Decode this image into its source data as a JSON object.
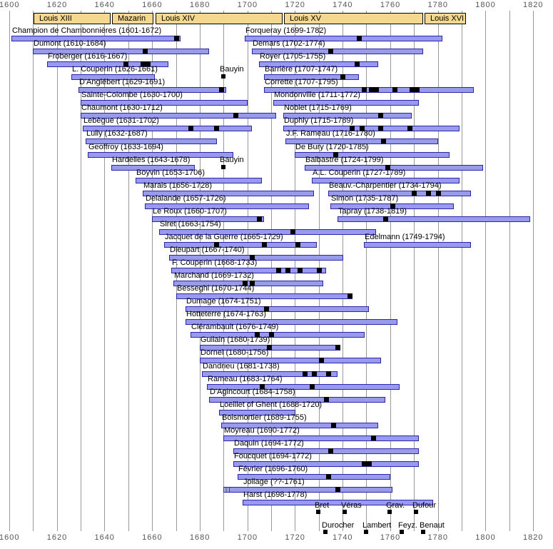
{
  "chart_data": {
    "type": "bar",
    "subtype": "timeline-of-lifespans",
    "title": "French harpsichord composers timeline 1600-1820",
    "xlabel": "",
    "ylabel": "",
    "axis": {
      "min": 1600,
      "max": 1820,
      "minor_step": 10,
      "label_step": 20,
      "tick_labels": [
        "1600",
        "1620",
        "1640",
        "1660",
        "1680",
        "1700",
        "1720",
        "1740",
        "1760",
        "1780",
        "1800",
        "1820"
      ]
    },
    "reigns": [
      {
        "label": "Louis XIII",
        "start": 1610,
        "end": 1643
      },
      {
        "label": "Mazarin",
        "start": 1643,
        "end": 1661
      },
      {
        "label": "Louis XIV",
        "start": 1661,
        "end": 1715
      },
      {
        "label": "Louis XV",
        "start": 1715,
        "end": 1774
      },
      {
        "label": "Louis XVI",
        "start": 1774,
        "end": 1792
      }
    ],
    "composers": [
      {
        "row": 0,
        "label": "Champion de Chambonnières (1601-1672)",
        "start": 1601,
        "end": 1672,
        "markers": [
          1670
        ]
      },
      {
        "row": 1,
        "label": "Dumont (1610-1684)",
        "start": 1610,
        "end": 1684,
        "markers": [
          1657
        ]
      },
      {
        "row": 2,
        "label": "Froberger (1616-1667)",
        "start": 1616,
        "end": 1667,
        "markers": [
          1649,
          1656,
          1658
        ]
      },
      {
        "row": 3,
        "label": "L. Couperin (1626-1661)",
        "start": 1626,
        "end": 1661,
        "markers": []
      },
      {
        "row": 4,
        "label": "D'Anglébert (1629-1691)",
        "start": 1629,
        "end": 1691,
        "markers": [
          1689
        ]
      },
      {
        "row": 5,
        "label": "Sainte-Colombe (1630-1700)",
        "start": 1630,
        "end": 1700,
        "markers": []
      },
      {
        "row": 6,
        "label": "Chaumont (1630-1712)",
        "start": 1630,
        "end": 1712,
        "markers": [
          1695
        ]
      },
      {
        "row": 7,
        "label": "Lebègue (1631-1702)",
        "start": 1631,
        "end": 1702,
        "markers": [
          1676,
          1687
        ]
      },
      {
        "row": 8,
        "label": "Lully (1632-1687)",
        "start": 1632,
        "end": 1687,
        "markers": []
      },
      {
        "row": 9,
        "label": "Geoffroy (1633-1694)",
        "start": 1633,
        "end": 1694,
        "markers": []
      },
      {
        "row": 10,
        "label": "Hardelles (1643-1678)",
        "start": 1643,
        "end": 1678,
        "markers": []
      },
      {
        "row": 11,
        "label": "Boyvin (1653-1706)",
        "start": 1653,
        "end": 1706,
        "markers": []
      },
      {
        "row": 12,
        "label": "Marais (1656-1728)",
        "start": 1656,
        "end": 1728,
        "markers": []
      },
      {
        "row": 13,
        "label": "Delalande (1657-1726)",
        "start": 1657,
        "end": 1726,
        "markers": []
      },
      {
        "row": 14,
        "label": "Le Roux (1660-1707)",
        "start": 1660,
        "end": 1707,
        "markers": [
          1705
        ]
      },
      {
        "row": 15,
        "label": "Siret (1663-1754)",
        "start": 1663,
        "end": 1754,
        "markers": [
          1719
        ]
      },
      {
        "row": 16,
        "label": "Jacquet de la Guerre (1665-1729)",
        "start": 1665,
        "end": 1729,
        "markers": [
          1687,
          1707,
          1721
        ]
      },
      {
        "row": 17,
        "label": "Dieupart (1667-1740)",
        "start": 1667,
        "end": 1740,
        "markers": [
          1702
        ]
      },
      {
        "row": 18,
        "label": "F. Couperin (1668-1733)",
        "start": 1668,
        "end": 1733,
        "markers": [
          1713,
          1717,
          1722,
          1730
        ]
      },
      {
        "row": 19,
        "label": "Marchand (1669-1732)",
        "start": 1669,
        "end": 1732,
        "markers": [
          1699,
          1702
        ]
      },
      {
        "row": 20,
        "label": "Besseghi (1670-1744)",
        "start": 1670,
        "end": 1744,
        "markers": [
          1743
        ]
      },
      {
        "row": 21,
        "label": "Dumage (1674-1751)",
        "start": 1674,
        "end": 1751,
        "markers": [
          1708
        ]
      },
      {
        "row": 22,
        "label": "Hotteterre (1674-1763)",
        "start": 1674,
        "end": 1763,
        "markers": []
      },
      {
        "row": 23,
        "label": "Clérambault (1676-1749)",
        "start": 1676,
        "end": 1749,
        "markers": [
          1704,
          1710
        ]
      },
      {
        "row": 24,
        "label": "Guilain (1680-1739)",
        "start": 1680,
        "end": 1739,
        "markers": [
          1709,
          1738
        ]
      },
      {
        "row": 25,
        "label": "Dornel (1680-1756)",
        "start": 1680,
        "end": 1756,
        "markers": [
          1731
        ]
      },
      {
        "row": 26,
        "label": "Dandrieu (1681-1738)",
        "start": 1681,
        "end": 1738,
        "markers": [
          1724,
          1728,
          1734
        ]
      },
      {
        "row": 27,
        "label": "Rameau (1683-1764)",
        "start": 1683,
        "end": 1764,
        "markers": [
          1706,
          1727
        ]
      },
      {
        "row": 28,
        "label": "D'Agincourt (1684-1758)",
        "start": 1684,
        "end": 1758,
        "markers": [
          1733
        ]
      },
      {
        "row": 29,
        "label": "Loeillet of Ghent (1688-1720)",
        "start": 1688,
        "end": 1720,
        "markers": []
      },
      {
        "row": 30,
        "label": "Boismortier (1689-1755)",
        "start": 1689,
        "end": 1755,
        "markers": [
          1736
        ]
      },
      {
        "row": 31,
        "label": "Moyreau (1690-1772)",
        "start": 1690,
        "end": 1772,
        "markers": [
          1753
        ]
      },
      {
        "row": 32,
        "label": "Daquin (1694-1772)",
        "start": 1694,
        "end": 1772,
        "markers": [
          1735
        ]
      },
      {
        "row": 33,
        "label": "Foucquet (1694-1772)",
        "start": 1694,
        "end": 1772,
        "markers": [
          1749,
          1751
        ]
      },
      {
        "row": 34,
        "label": "Février (1696-1760)",
        "start": 1696,
        "end": 1760,
        "markers": [
          1734
        ]
      },
      {
        "row": 35,
        "label": "Jollage (??-1761)",
        "start": 1690,
        "end": 1761,
        "markers": [
          1738
        ],
        "uncertain_start": true,
        "label_year": 1698
      },
      {
        "row": 36,
        "label": "Harst (1698-1778)",
        "start": 1698,
        "end": 1778,
        "markers": []
      },
      {
        "row": 0,
        "label": "Forqueray (1699-1782)",
        "start": 1699,
        "end": 1782,
        "markers": [
          1747
        ]
      },
      {
        "row": 1,
        "label": "Demars (1702-1774)",
        "start": 1702,
        "end": 1774,
        "markers": [
          1735
        ]
      },
      {
        "row": 2,
        "label": "Royer (1705-1755)",
        "start": 1705,
        "end": 1755,
        "markers": [
          1746
        ]
      },
      {
        "row": 3,
        "label": "Barrière (1707-1747)",
        "start": 1707,
        "end": 1747,
        "markers": [
          1740
        ]
      },
      {
        "row": 4,
        "label": "Corrette (1707-1795)",
        "start": 1707,
        "end": 1795,
        "markers": [
          1749,
          1752,
          1754,
          1762,
          1769,
          1771
        ]
      },
      {
        "row": 5,
        "label": "Mondonville (1711-1772)",
        "start": 1711,
        "end": 1772,
        "markers": []
      },
      {
        "row": 6,
        "label": "Noblet (1715-1769)",
        "start": 1715,
        "end": 1769,
        "markers": [
          1756
        ]
      },
      {
        "row": 7,
        "label": "Duphly (1715-1789)",
        "start": 1715,
        "end": 1789,
        "markers": [
          1744,
          1748,
          1756,
          1768
        ]
      },
      {
        "row": 8,
        "label": "J.F. Rameau (1716-1780)",
        "start": 1716,
        "end": 1780,
        "markers": [
          1757
        ]
      },
      {
        "row": 9,
        "label": "De Bury (1720-1785)",
        "start": 1720,
        "end": 1785,
        "markers": [
          1737
        ]
      },
      {
        "row": 10,
        "label": "Balbastre (1724-1799)",
        "start": 1724,
        "end": 1799,
        "markers": [
          1759
        ]
      },
      {
        "row": 11,
        "label": "A.L. Couperin (1727-1789)",
        "start": 1727,
        "end": 1789,
        "markers": []
      },
      {
        "row": 12,
        "label": "Beauv.-Charpentier (1734-1794)",
        "start": 1734,
        "end": 1794,
        "markers": [
          1770,
          1776,
          1780
        ]
      },
      {
        "row": 13,
        "label": "Simon (1735-1787)",
        "start": 1735,
        "end": 1787,
        "markers": [
          1761
        ]
      },
      {
        "row": 14,
        "label": "Tapray (1738-1819)",
        "start": 1738,
        "end": 1819,
        "markers": [
          1758
        ]
      },
      {
        "row": 16,
        "label": "Edelmann (1749-1794)",
        "start": 1749,
        "end": 1794,
        "markers": []
      }
    ],
    "annotations": [
      {
        "row": 3,
        "label": "Bauyin",
        "year": 1689
      },
      {
        "row": 10,
        "label": "Bauyin",
        "year": 1689
      }
    ],
    "footer_marks": [
      {
        "line": 1,
        "items": [
          {
            "label": "Bret",
            "year": 1729
          },
          {
            "label": "Véras",
            "year": 1740
          },
          {
            "label": "Grav.",
            "year": 1759
          },
          {
            "label": "Dufour",
            "year": 1770
          }
        ]
      },
      {
        "line": 2,
        "items": [
          {
            "label": "Durocher",
            "year": 1732
          },
          {
            "label": "Lambert",
            "year": 1749
          },
          {
            "label": "Feyz.",
            "year": 1764
          },
          {
            "label": "Benaut",
            "year": 1773
          }
        ]
      }
    ],
    "legend_position": "none",
    "grid": true
  },
  "colors": {
    "background": "#ffffff",
    "bar_fill": "#9999ee",
    "bar_border": "#2929a3",
    "marker": "#000000",
    "reign_fill": "#f5d88f",
    "reign_border": "#000000",
    "gridline": "#999999",
    "axis_text": "#555555",
    "label_text": "#000000"
  }
}
